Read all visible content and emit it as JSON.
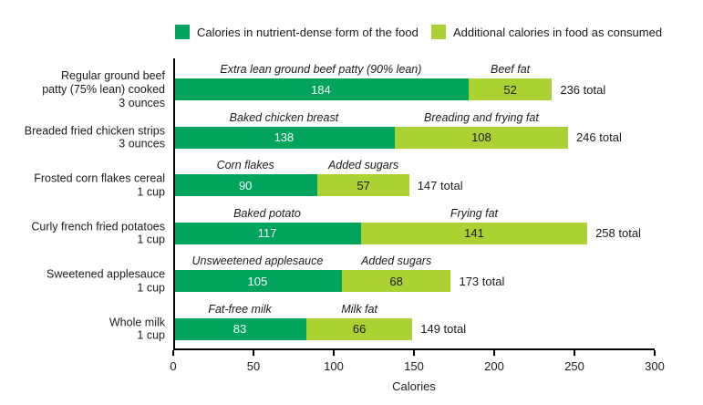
{
  "legend": {
    "items": [
      {
        "label": "Calories in nutrient-dense form of the food",
        "color": "#00A45D"
      },
      {
        "label": "Additional calories in food as consumed",
        "color": "#ABD132"
      }
    ]
  },
  "chart_data": {
    "type": "bar",
    "orientation": "horizontal",
    "stacked": true,
    "title": "",
    "xlabel": "Calories",
    "ylabel": "",
    "xlim": [
      0,
      300
    ],
    "xticks": [
      0,
      50,
      100,
      150,
      200,
      250,
      300
    ],
    "grid": false,
    "legend_position": "top",
    "colors": {
      "nutrient_dense": "#00A45D",
      "additional": "#ABD132"
    },
    "series": [
      {
        "name": "Calories in nutrient-dense form of the food",
        "color": "#00A45D",
        "values": [
          184,
          138,
          90,
          117,
          105,
          83
        ]
      },
      {
        "name": "Additional calories in food as consumed",
        "color": "#ABD132",
        "values": [
          52,
          108,
          57,
          141,
          68,
          66
        ]
      }
    ],
    "rows": [
      {
        "category_lines": [
          "Regular ground beef",
          "patty (75% lean) cooked",
          "3 ounces"
        ],
        "segment_labels": [
          "Extra lean ground beef patty (90% lean)",
          "Beef fat"
        ],
        "values": [
          184,
          52
        ],
        "total": 236,
        "total_label": "236 total"
      },
      {
        "category_lines": [
          "Breaded fried chicken strips",
          "3 ounces"
        ],
        "segment_labels": [
          "Baked chicken breast",
          "Breading and frying fat"
        ],
        "values": [
          138,
          108
        ],
        "total": 246,
        "total_label": "246 total"
      },
      {
        "category_lines": [
          "Frosted corn flakes cereal",
          "1 cup"
        ],
        "segment_labels": [
          "Corn flakes",
          "Added sugars"
        ],
        "values": [
          90,
          57
        ],
        "total": 147,
        "total_label": "147 total"
      },
      {
        "category_lines": [
          "Curly french fried potatoes",
          "1 cup"
        ],
        "segment_labels": [
          "Baked potato",
          "Frying fat"
        ],
        "values": [
          117,
          141
        ],
        "total": 258,
        "total_label": "258 total"
      },
      {
        "category_lines": [
          "Sweetened applesauce",
          "1 cup"
        ],
        "segment_labels": [
          "Unsweetened applesauce",
          "Added sugars"
        ],
        "values": [
          105,
          68
        ],
        "total": 173,
        "total_label": "173 total"
      },
      {
        "category_lines": [
          "Whole milk",
          "1 cup"
        ],
        "segment_labels": [
          "Fat-free milk",
          "Milk fat"
        ],
        "values": [
          83,
          66
        ],
        "total": 149,
        "total_label": "149 total"
      }
    ]
  }
}
